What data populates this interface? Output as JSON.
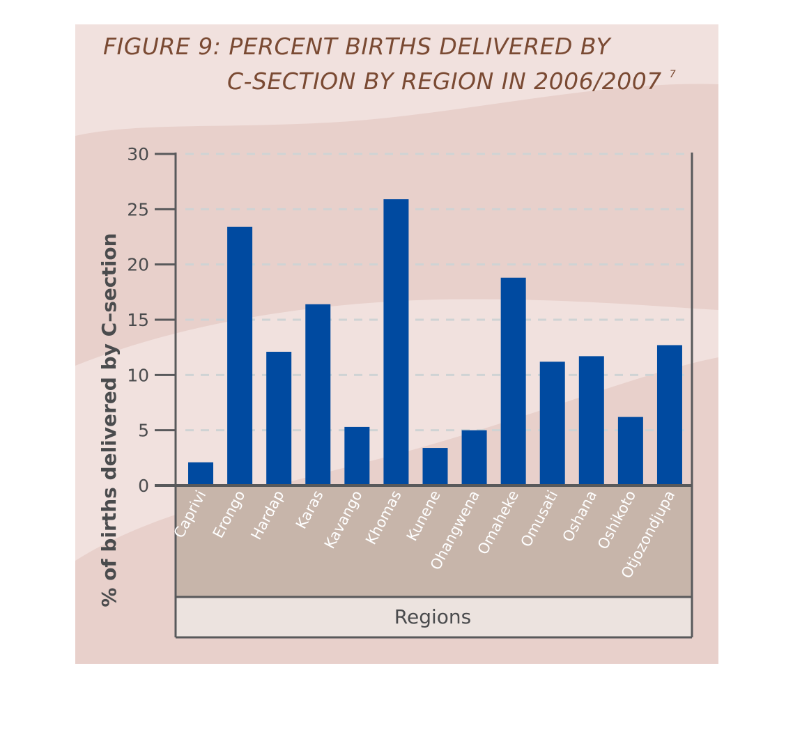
{
  "chart_data": {
    "type": "bar",
    "title_line1": "FIGURE 9: PERCENT BIRTHS DELIVERED BY",
    "title_line2": "C-SECTION BY REGION IN 2006/2007",
    "title_footnote": "7",
    "xlabel": "Regions",
    "ylabel": "% of births delivered by C–section",
    "ylim": [
      0,
      30
    ],
    "yticks": [
      0,
      5,
      10,
      15,
      20,
      25,
      30
    ],
    "grid": true,
    "categories": [
      "Caprivi",
      "Erongo",
      "Hardap",
      "Karas",
      "Kavango",
      "Khomas",
      "Kunene",
      "Ohangwena",
      "Omaheke",
      "Omusati",
      "Oshana",
      "Oshikoto",
      "Otjozondjupa"
    ],
    "values": [
      2.1,
      23.4,
      12.1,
      16.4,
      5.3,
      25.9,
      3.4,
      5.0,
      18.8,
      11.2,
      11.7,
      6.2,
      12.7
    ],
    "colors": {
      "bar": "#004aa0",
      "background": "#e8d0cb",
      "wave_light": "#f0e0dd",
      "category_band": "#c7b5aa",
      "xlabel_band": "#ece3df",
      "axis": "#58595b",
      "grid": "#cfd3d4",
      "title": "#7a4a33"
    }
  }
}
